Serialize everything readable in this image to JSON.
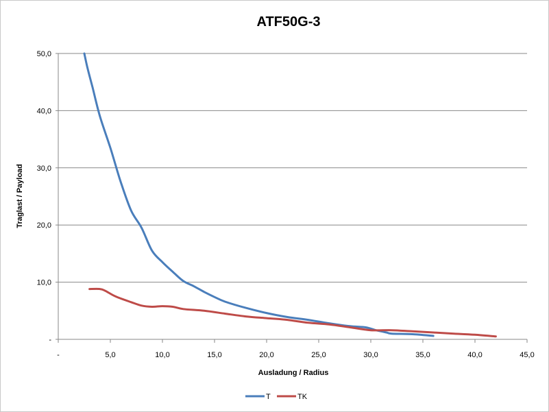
{
  "chart_data": {
    "type": "line",
    "title": "ATF50G-3",
    "xlabel": "Ausladung / Radius",
    "ylabel": "Traglast / Payload",
    "xlim": [
      0,
      45
    ],
    "ylim": [
      0,
      50
    ],
    "x_ticks": [
      "-",
      "5,0",
      "10,0",
      "15,0",
      "20,0",
      "25,0",
      "30,0",
      "35,0",
      "40,0",
      "45,0"
    ],
    "y_ticks": [
      "-",
      "10,0",
      "20,0",
      "30,0",
      "40,0",
      "50,0"
    ],
    "grid": "horizontal",
    "legend_position": "bottom",
    "series": [
      {
        "name": "T",
        "color": "#4a7ebb",
        "points": [
          [
            2.5,
            50.0
          ],
          [
            2.8,
            47.5
          ],
          [
            3.3,
            44.0
          ],
          [
            4.0,
            39.0
          ],
          [
            5.0,
            33.5
          ],
          [
            6.0,
            27.5
          ],
          [
            7.0,
            22.5
          ],
          [
            8.0,
            19.5
          ],
          [
            9.0,
            15.5
          ],
          [
            10.0,
            13.5
          ],
          [
            11.0,
            11.8
          ],
          [
            12.0,
            10.2
          ],
          [
            13.0,
            9.3
          ],
          [
            14.0,
            8.3
          ],
          [
            15.0,
            7.4
          ],
          [
            16.0,
            6.6
          ],
          [
            18.0,
            5.5
          ],
          [
            20.0,
            4.6
          ],
          [
            22.0,
            3.9
          ],
          [
            24.0,
            3.4
          ],
          [
            26.0,
            2.8
          ],
          [
            28.0,
            2.3
          ],
          [
            29.5,
            2.1
          ],
          [
            30.5,
            1.6
          ],
          [
            31.5,
            1.2
          ],
          [
            32.0,
            1.0
          ],
          [
            34.0,
            0.9
          ],
          [
            36.0,
            0.6
          ]
        ]
      },
      {
        "name": "TK",
        "color": "#be4b48",
        "points": [
          [
            3.0,
            8.8
          ],
          [
            4.0,
            8.8
          ],
          [
            4.5,
            8.5
          ],
          [
            5.5,
            7.5
          ],
          [
            7.0,
            6.5
          ],
          [
            8.0,
            5.9
          ],
          [
            9.0,
            5.7
          ],
          [
            10.0,
            5.8
          ],
          [
            11.0,
            5.7
          ],
          [
            12.0,
            5.3
          ],
          [
            14.0,
            5.0
          ],
          [
            16.0,
            4.5
          ],
          [
            18.0,
            4.0
          ],
          [
            20.0,
            3.7
          ],
          [
            22.0,
            3.4
          ],
          [
            24.0,
            2.9
          ],
          [
            26.0,
            2.6
          ],
          [
            28.0,
            2.1
          ],
          [
            30.0,
            1.6
          ],
          [
            32.0,
            1.6
          ],
          [
            34.0,
            1.4
          ],
          [
            36.0,
            1.2
          ],
          [
            38.0,
            1.0
          ],
          [
            40.0,
            0.8
          ],
          [
            42.0,
            0.5
          ]
        ]
      }
    ]
  }
}
